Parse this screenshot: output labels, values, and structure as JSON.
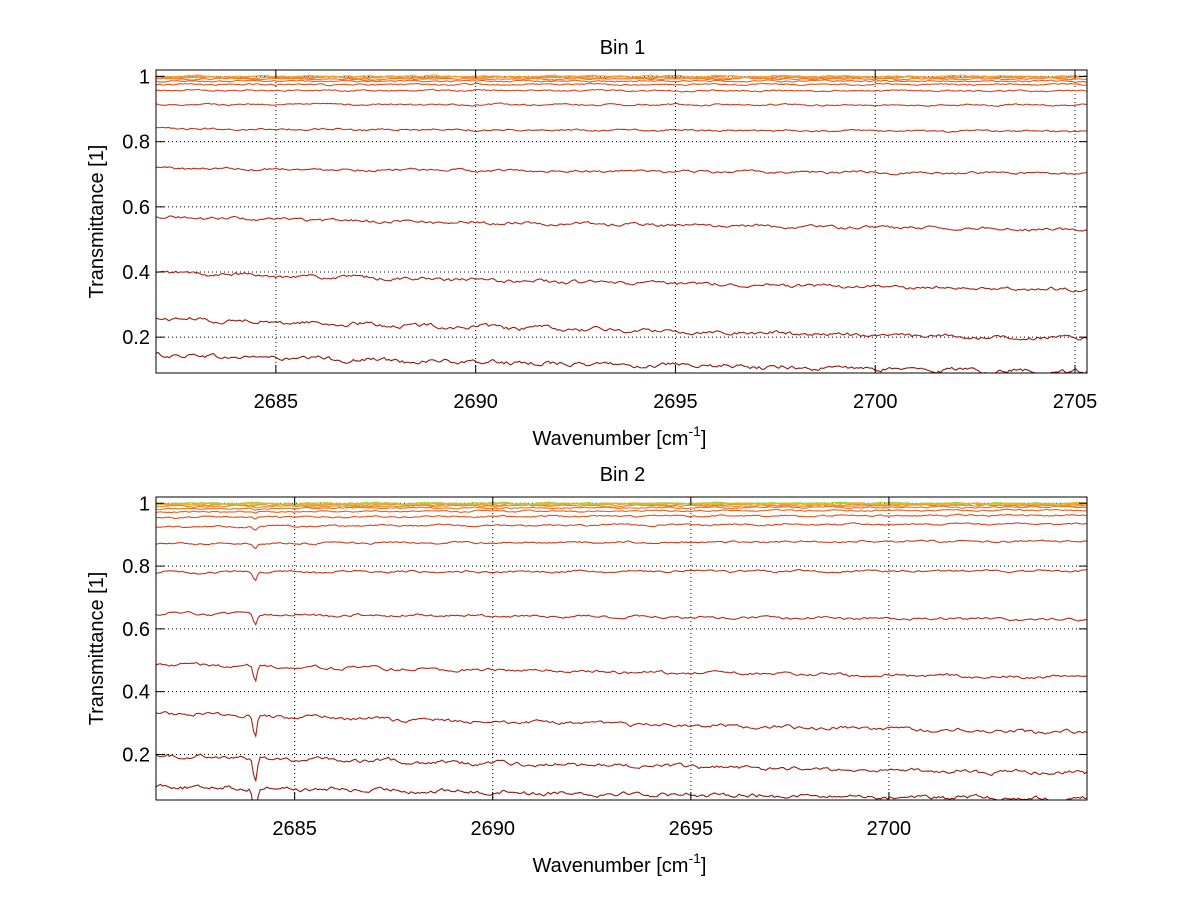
{
  "chart_data": [
    {
      "type": "line",
      "title": "Bin 1",
      "xlabel": "Wavenumber [cm",
      "xlabel_sup": "-1",
      "xlabel_end": "]",
      "ylabel": "Transmittance [1]",
      "xlim": [
        2682.0,
        2705.3
      ],
      "ylim": [
        0.09,
        1.02
      ],
      "xticks": [
        2685,
        2690,
        2695,
        2700,
        2705
      ],
      "xtick_labels": [
        "2685",
        "2690",
        "2695",
        "2700",
        "2705"
      ],
      "yticks": [
        0.2,
        0.4,
        0.6,
        0.8,
        1.0
      ],
      "ytick_labels": [
        "0.2",
        "0.4",
        "0.6",
        "0.8",
        "1"
      ],
      "grid": "dotted",
      "feature": {
        "dip_at": 0,
        "dip_depth": 0
      },
      "series": [
        {
          "color": "#8b1a10",
          "start": 0.148,
          "end": 0.093
        },
        {
          "color": "#9c1e12",
          "start": 0.26,
          "end": 0.195
        },
        {
          "color": "#aa2214",
          "start": 0.4,
          "end": 0.345
        },
        {
          "color": "#b42616",
          "start": 0.57,
          "end": 0.53
        },
        {
          "color": "#bc2a18",
          "start": 0.72,
          "end": 0.702
        },
        {
          "color": "#c4321a",
          "start": 0.84,
          "end": 0.832
        },
        {
          "color": "#cc3c1c",
          "start": 0.915,
          "end": 0.912
        },
        {
          "color": "#d4461e",
          "start": 0.958,
          "end": 0.956
        },
        {
          "color": "#dc5420",
          "start": 0.975,
          "end": 0.976
        },
        {
          "color": "#e26222",
          "start": 0.985,
          "end": 0.986
        },
        {
          "color": "#e87024",
          "start": 0.992,
          "end": 0.993
        },
        {
          "color": "#ee8026",
          "start": 0.996,
          "end": 0.997
        },
        {
          "color": "#f29028",
          "start": 0.999,
          "end": 0.999
        },
        {
          "color": "#f5a02a",
          "start": 1.001,
          "end": 1.001
        }
      ]
    },
    {
      "type": "line",
      "title": "Bin 2",
      "xlabel": "Wavenumber [cm",
      "xlabel_sup": "-1",
      "xlabel_end": "]",
      "ylabel": "Transmittance [1]",
      "xlim": [
        2681.5,
        2705.0
      ],
      "ylim": [
        0.055,
        1.02
      ],
      "xticks": [
        2685,
        2690,
        2695,
        2700
      ],
      "xtick_labels": [
        "2685",
        "2690",
        "2695",
        "2700"
      ],
      "yticks": [
        0.2,
        0.4,
        0.6,
        0.8,
        1.0
      ],
      "ytick_labels": [
        "0.2",
        "0.4",
        "0.6",
        "0.8",
        "1"
      ],
      "grid": "dotted",
      "feature": {
        "dip_at": 2684.0,
        "dip_depth": 0.025
      },
      "series": [
        {
          "color": "#8b1a10",
          "start": 0.1,
          "end": 0.058
        },
        {
          "color": "#9c1e12",
          "start": 0.2,
          "end": 0.14
        },
        {
          "color": "#aa2214",
          "start": 0.335,
          "end": 0.27
        },
        {
          "color": "#b42616",
          "start": 0.49,
          "end": 0.445
        },
        {
          "color": "#bc2a18",
          "start": 0.65,
          "end": 0.63
        },
        {
          "color": "#c4321a",
          "start": 0.78,
          "end": 0.785
        },
        {
          "color": "#cc3c1c",
          "start": 0.87,
          "end": 0.88
        },
        {
          "color": "#d4461e",
          "start": 0.925,
          "end": 0.935
        },
        {
          "color": "#dc5420",
          "start": 0.955,
          "end": 0.962
        },
        {
          "color": "#e26222",
          "start": 0.972,
          "end": 0.978
        },
        {
          "color": "#e87024",
          "start": 0.983,
          "end": 0.988
        },
        {
          "color": "#ee8026",
          "start": 0.99,
          "end": 0.993
        },
        {
          "color": "#f29028",
          "start": 0.994,
          "end": 0.996
        },
        {
          "color": "#f5a02a",
          "start": 0.997,
          "end": 0.998
        },
        {
          "color": "#e6c020",
          "start": 0.999,
          "end": 0.999
        },
        {
          "color": "#9fcf3a",
          "start": 1.0,
          "end": 1.0
        }
      ]
    }
  ]
}
